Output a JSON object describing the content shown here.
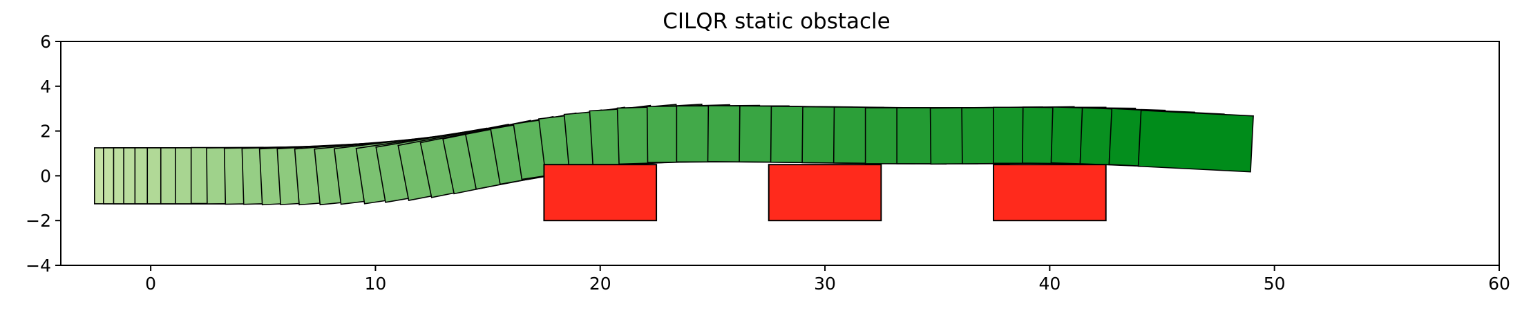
{
  "chart_data": {
    "type": "scatter",
    "title": "CILQR static obstacle",
    "xlabel": "",
    "ylabel": "",
    "xlim": [
      -4,
      60
    ],
    "ylim": [
      -4,
      6
    ],
    "x_ticks": [
      0,
      10,
      20,
      30,
      40,
      50,
      60
    ],
    "y_ticks": [
      -4,
      -2,
      0,
      2,
      4,
      6
    ],
    "grid": false,
    "legend": "none",
    "vehicle": {
      "length": 5,
      "width": 2.5,
      "color_start": "#c7e3a7",
      "color_end": "#008c1a",
      "edge_color": "#000000",
      "trajectory": [
        [
          0.0,
          0.0,
          0.0
        ],
        [
          0.4,
          0.0,
          0.0
        ],
        [
          0.85,
          0.0,
          0.0
        ],
        [
          1.3,
          0.0,
          0.0
        ],
        [
          1.8,
          0.0,
          0.0
        ],
        [
          2.35,
          0.0,
          0.0
        ],
        [
          2.95,
          0.0,
          0.0
        ],
        [
          3.6,
          0.0,
          0.0
        ],
        [
          4.3,
          0.01,
          0.0
        ],
        [
          5.0,
          0.02,
          0.01
        ],
        [
          5.8,
          0.03,
          0.02
        ],
        [
          6.6,
          0.05,
          0.03
        ],
        [
          7.4,
          0.08,
          0.05
        ],
        [
          8.2,
          0.11,
          0.06
        ],
        [
          9.0,
          0.15,
          0.08
        ],
        [
          9.9,
          0.2,
          0.1
        ],
        [
          10.8,
          0.27,
          0.12
        ],
        [
          11.8,
          0.36,
          0.15
        ],
        [
          12.7,
          0.47,
          0.17
        ],
        [
          13.7,
          0.6,
          0.19
        ],
        [
          14.7,
          0.75,
          0.2
        ],
        [
          15.7,
          0.92,
          0.2
        ],
        [
          16.7,
          1.1,
          0.19
        ],
        [
          17.8,
          1.28,
          0.17
        ],
        [
          18.8,
          1.45,
          0.15
        ],
        [
          19.9,
          1.6,
          0.12
        ],
        [
          21.0,
          1.72,
          0.09
        ],
        [
          22.1,
          1.8,
          0.06
        ],
        [
          23.3,
          1.85,
          0.03
        ],
        [
          24.6,
          1.87,
          0.01
        ],
        [
          25.9,
          1.87,
          0.0
        ],
        [
          27.3,
          1.86,
          -0.01
        ],
        [
          28.7,
          1.85,
          -0.01
        ],
        [
          30.1,
          1.83,
          -0.01
        ],
        [
          31.5,
          1.81,
          -0.01
        ],
        [
          32.9,
          1.8,
          -0.01
        ],
        [
          34.3,
          1.79,
          0.0
        ],
        [
          35.7,
          1.79,
          0.0
        ],
        [
          37.2,
          1.8,
          0.01
        ],
        [
          38.6,
          1.81,
          0.01
        ],
        [
          40.0,
          1.81,
          0.0
        ],
        [
          41.3,
          1.79,
          -0.01
        ],
        [
          42.6,
          1.75,
          -0.03
        ],
        [
          43.9,
          1.69,
          -0.04
        ],
        [
          45.2,
          1.63,
          -0.05
        ],
        [
          46.5,
          1.55,
          -0.05
        ]
      ]
    },
    "obstacles": [
      {
        "x_min": 17.5,
        "x_max": 22.5,
        "y_min": -2,
        "y_max": 0.5,
        "color": "#ff2a1c"
      },
      {
        "x_min": 27.5,
        "x_max": 32.5,
        "y_min": -2,
        "y_max": 0.5,
        "color": "#ff2a1c"
      },
      {
        "x_min": 37.5,
        "x_max": 42.5,
        "y_min": -2,
        "y_max": 0.5,
        "color": "#ff2a1c"
      }
    ]
  }
}
